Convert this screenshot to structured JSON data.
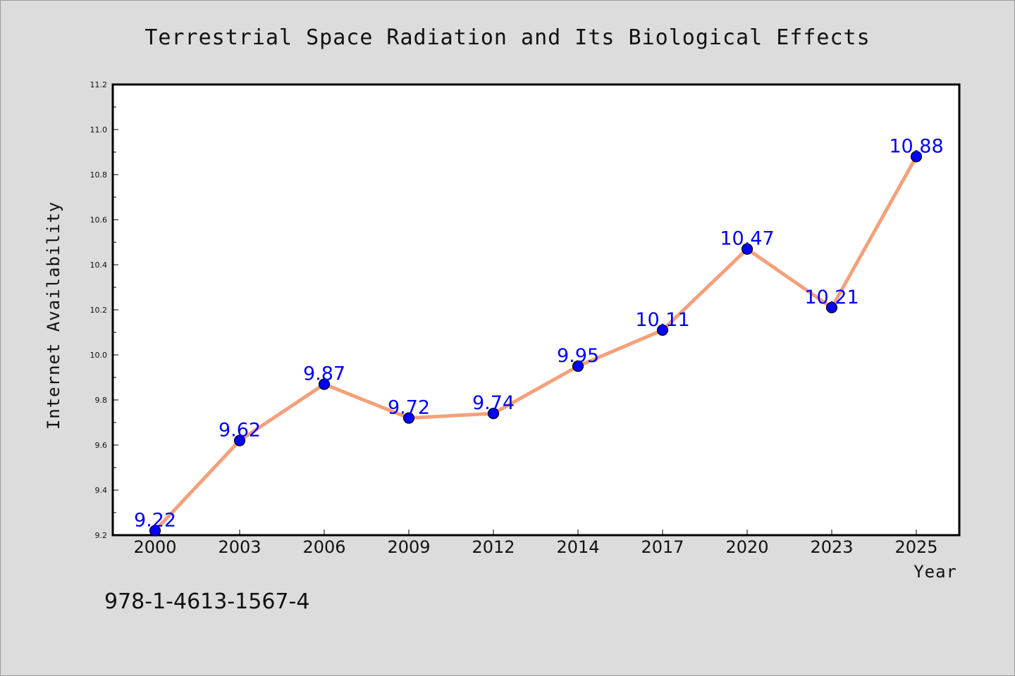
{
  "chart_data": {
    "type": "line",
    "title": "Terrestrial Space Radiation and Its Biological Effects",
    "xlabel": "Year",
    "ylabel": "Internet Availability",
    "categories": [
      "2000",
      "2003",
      "2006",
      "2009",
      "2012",
      "2014",
      "2017",
      "2020",
      "2023",
      "2025"
    ],
    "series": [
      {
        "values": [
          9.22,
          9.62,
          9.87,
          9.72,
          9.74,
          9.95,
          10.11,
          10.47,
          10.21,
          10.88
        ],
        "labels": [
          "9.22",
          "9.62",
          "9.87",
          "9.72",
          "9.74",
          "9.95",
          "10.11",
          "10.47",
          "10.21",
          "10.88"
        ]
      }
    ],
    "ylim": [
      9.2,
      11.2
    ],
    "yticks": [
      "9.2",
      "9.4",
      "9.6",
      "9.8",
      "10.0",
      "10.2",
      "10.4",
      "10.6",
      "10.8",
      "11.0",
      "11.2"
    ],
    "grid": false,
    "line_color": "#f5a07a",
    "marker_color": "#0000ff",
    "label_color": "#0000ff"
  },
  "footer": {
    "isbn": "978-1-4613-1567-4"
  }
}
